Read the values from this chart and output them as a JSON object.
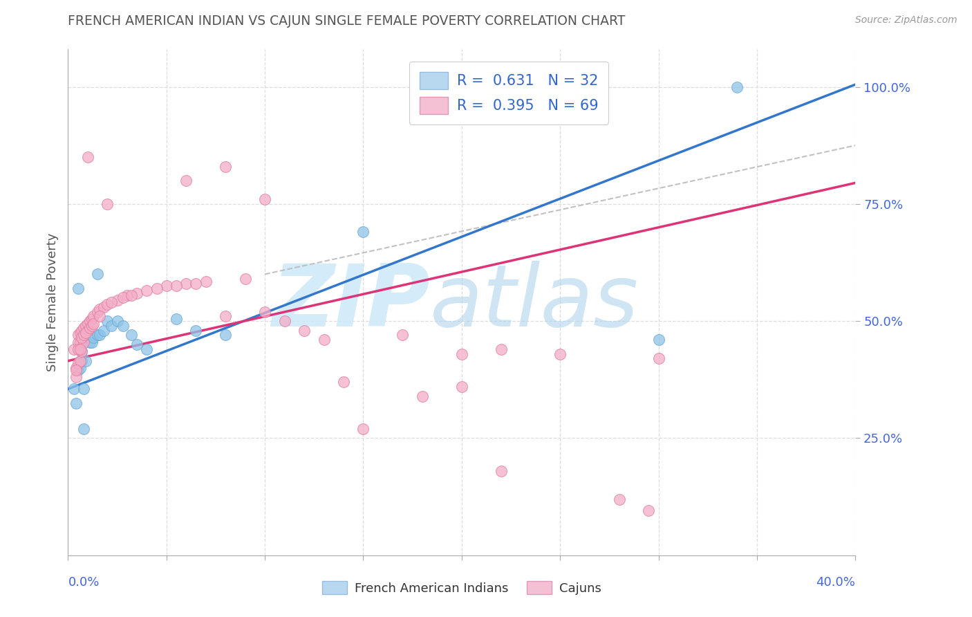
{
  "title": "FRENCH AMERICAN INDIAN VS CAJUN SINGLE FEMALE POVERTY CORRELATION CHART",
  "source": "Source: ZipAtlas.com",
  "ylabel": "Single Female Poverty",
  "xlim": [
    0.0,
    0.4
  ],
  "ylim": [
    0.0,
    1.08
  ],
  "blue_color": "#8ec4e8",
  "blue_edge": "#6aaad4",
  "pink_color": "#f4adc7",
  "pink_edge": "#e080a0",
  "blue_line_color": "#3377cc",
  "pink_line_color": "#dd3377",
  "ref_line_color": "#bbbbbb",
  "grid_color": "#dddddd",
  "title_color": "#555555",
  "axis_tick_color": "#4466dd",
  "blue_legend_face": "#b8d8f0",
  "pink_legend_face": "#f4c0d4",
  "legend1_r": "R = ",
  "legend1_rv": "0.631",
  "legend1_n": "  N = ",
  "legend1_nv": "32",
  "legend2_r": "R = ",
  "legend2_rv": "0.395",
  "legend2_n": "  N = ",
  "legend2_nv": "69",
  "bottom_legend1": "French American Indians",
  "bottom_legend2": "Cajuns",
  "blue_x": [
    0.003,
    0.004,
    0.005,
    0.006,
    0.006,
    0.007,
    0.007,
    0.008,
    0.009,
    0.01,
    0.011,
    0.012,
    0.013,
    0.015,
    0.016,
    0.018,
    0.02,
    0.022,
    0.025,
    0.028,
    0.032,
    0.035,
    0.04,
    0.055,
    0.065,
    0.08,
    0.015,
    0.34,
    0.15,
    0.3,
    0.005,
    0.008
  ],
  "blue_y": [
    0.355,
    0.325,
    0.395,
    0.415,
    0.4,
    0.435,
    0.415,
    0.355,
    0.415,
    0.48,
    0.455,
    0.455,
    0.465,
    0.47,
    0.47,
    0.48,
    0.5,
    0.49,
    0.5,
    0.49,
    0.47,
    0.45,
    0.44,
    0.505,
    0.48,
    0.47,
    0.6,
    1.0,
    0.69,
    0.46,
    0.57,
    0.27
  ],
  "pink_x": [
    0.003,
    0.004,
    0.004,
    0.005,
    0.005,
    0.005,
    0.006,
    0.006,
    0.006,
    0.007,
    0.007,
    0.008,
    0.008,
    0.009,
    0.01,
    0.01,
    0.011,
    0.012,
    0.013,
    0.015,
    0.016,
    0.018,
    0.02,
    0.025,
    0.03,
    0.035,
    0.04,
    0.05,
    0.06,
    0.07,
    0.08,
    0.1,
    0.12,
    0.14,
    0.06,
    0.01,
    0.08,
    0.1,
    0.02,
    0.17,
    0.2,
    0.22,
    0.25,
    0.3,
    0.18,
    0.2,
    0.15,
    0.22,
    0.28,
    0.295,
    0.004,
    0.005,
    0.006,
    0.007,
    0.008,
    0.009,
    0.011,
    0.012,
    0.013,
    0.016,
    0.022,
    0.028,
    0.032,
    0.045,
    0.055,
    0.065,
    0.09,
    0.11,
    0.13
  ],
  "pink_y": [
    0.44,
    0.4,
    0.38,
    0.47,
    0.455,
    0.41,
    0.475,
    0.455,
    0.415,
    0.48,
    0.435,
    0.485,
    0.455,
    0.49,
    0.495,
    0.48,
    0.5,
    0.505,
    0.51,
    0.52,
    0.525,
    0.53,
    0.535,
    0.545,
    0.555,
    0.56,
    0.565,
    0.575,
    0.58,
    0.585,
    0.51,
    0.52,
    0.48,
    0.37,
    0.8,
    0.85,
    0.83,
    0.76,
    0.75,
    0.47,
    0.43,
    0.44,
    0.43,
    0.42,
    0.34,
    0.36,
    0.27,
    0.18,
    0.12,
    0.095,
    0.395,
    0.44,
    0.44,
    0.465,
    0.47,
    0.475,
    0.485,
    0.49,
    0.495,
    0.51,
    0.54,
    0.55,
    0.555,
    0.57,
    0.575,
    0.58,
    0.59,
    0.5,
    0.46
  ],
  "blue_line_x": [
    0.0,
    0.4
  ],
  "blue_line_y": [
    0.355,
    1.005
  ],
  "pink_line_x": [
    0.0,
    0.4
  ],
  "pink_line_y": [
    0.415,
    0.795
  ],
  "ref_line_x": [
    0.1,
    0.4
  ],
  "ref_line_y": [
    0.6,
    0.875
  ]
}
